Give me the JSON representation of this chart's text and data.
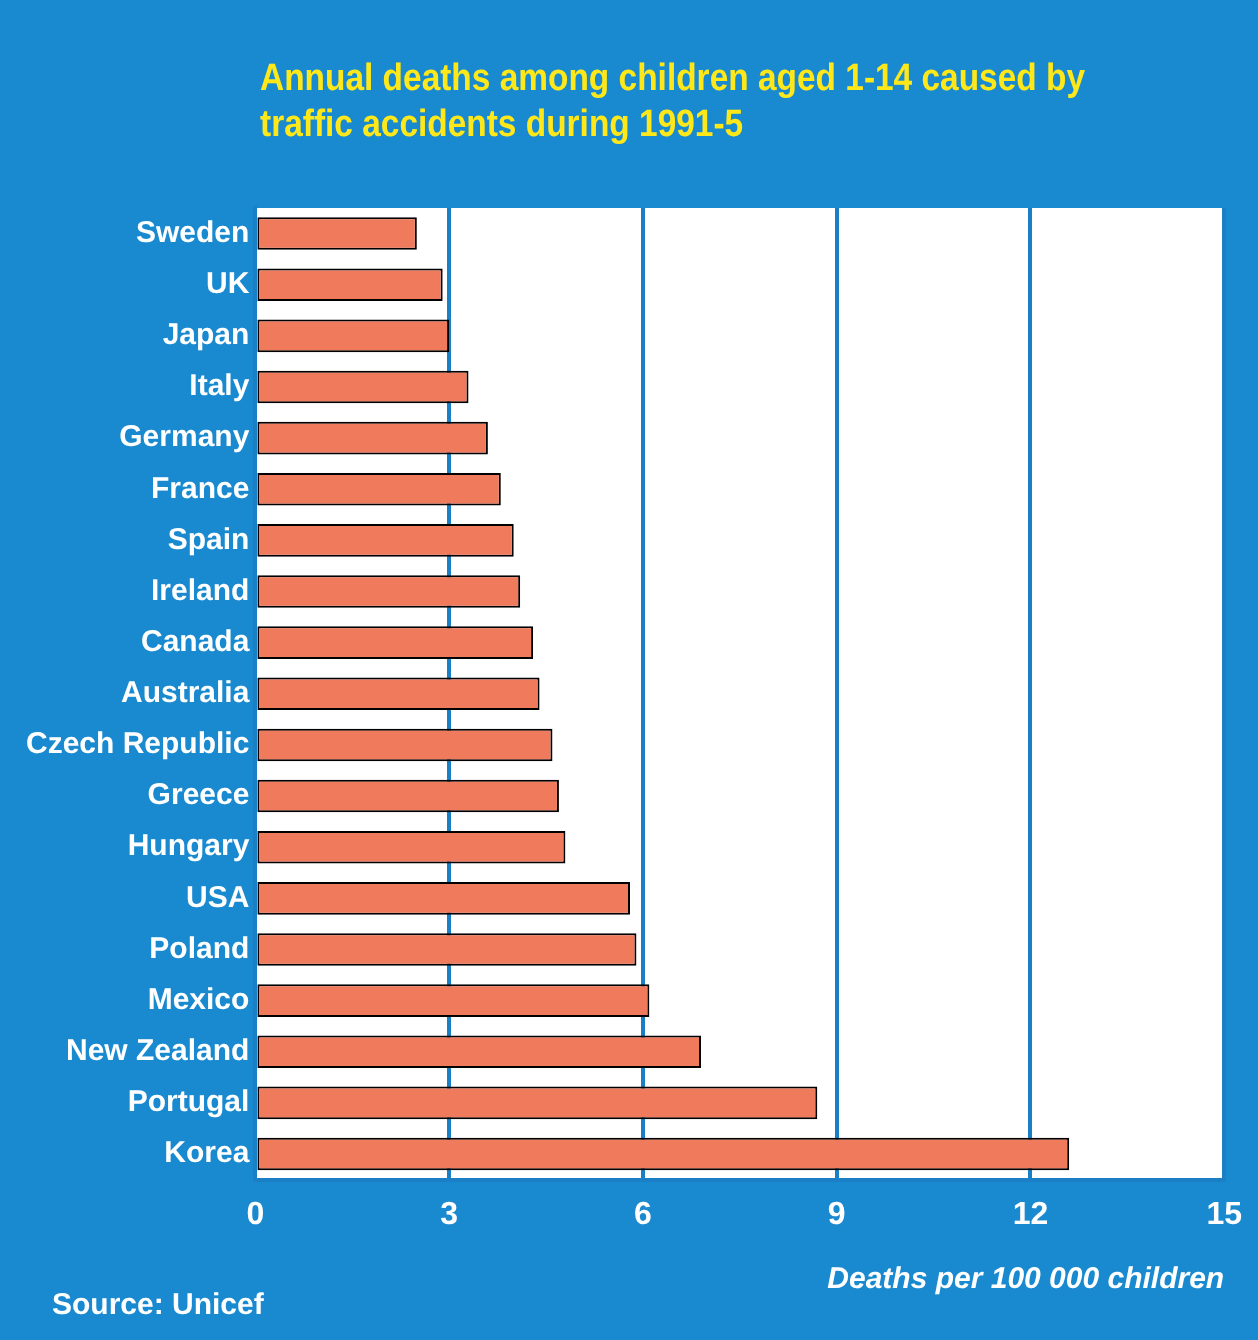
{
  "chart_data": {
    "type": "bar",
    "orientation": "horizontal",
    "title": "Annual deaths among children aged 1-14 caused by traffic accidents during 1991-5",
    "xlabel": "Deaths per 100 000 children",
    "annotations": [
      "Source: Unicef"
    ],
    "categories": [
      "Sweden",
      "UK",
      "Japan",
      "Italy",
      "Germany",
      "France",
      "Spain",
      "Ireland",
      "Canada",
      "Australia",
      "Czech Republic",
      "Greece",
      "Hungary",
      "USA",
      "Poland",
      "Mexico",
      "New Zealand",
      "Portugal",
      "Korea"
    ],
    "values": [
      2.5,
      2.9,
      3.0,
      3.3,
      3.6,
      3.8,
      4.0,
      4.1,
      4.3,
      4.4,
      4.6,
      4.7,
      4.8,
      5.8,
      5.9,
      6.1,
      6.9,
      8.7,
      12.6
    ],
    "color": "#f07a5c",
    "xlim": [
      0,
      15
    ],
    "xticks": [
      0,
      3,
      6,
      9,
      12,
      15
    ],
    "grid": "x",
    "legend": false
  }
}
